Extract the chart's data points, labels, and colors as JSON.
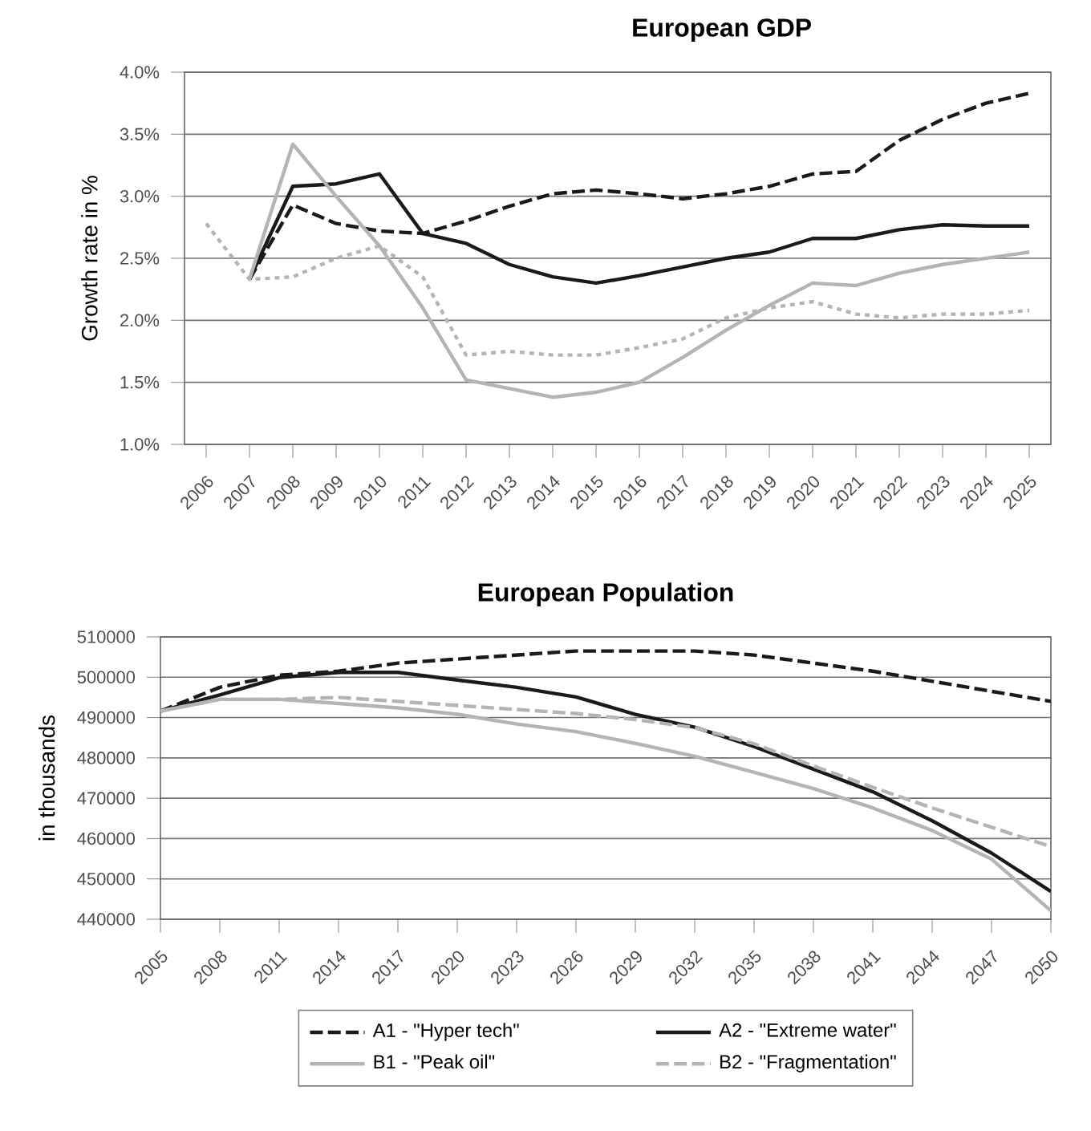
{
  "chart_data": [
    {
      "type": "line",
      "title": "European GDP",
      "ylabel": "Growth rate in %",
      "categories": [
        "2006",
        "2007",
        "2008",
        "2009",
        "2010",
        "2011",
        "2012",
        "2013",
        "2014",
        "2015",
        "2016",
        "2017",
        "2018",
        "2019",
        "2020",
        "2021",
        "2022",
        "2023",
        "2024",
        "2025"
      ],
      "series": [
        {
          "color": "#1a1a1a",
          "line_style": "dashed",
          "values": [
            null,
            2.33,
            2.93,
            2.78,
            2.72,
            2.7,
            2.8,
            2.92,
            3.02,
            3.05,
            3.02,
            2.98,
            3.02,
            3.08,
            3.18,
            3.2,
            3.45,
            3.62,
            3.75,
            3.83
          ]
        },
        {
          "color": "#1a1a1a",
          "line_style": "solid",
          "values": [
            null,
            2.33,
            3.08,
            3.1,
            3.18,
            2.7,
            2.62,
            2.45,
            2.35,
            2.3,
            2.36,
            2.43,
            2.5,
            2.55,
            2.66,
            2.66,
            2.73,
            2.77,
            2.76,
            2.76
          ]
        },
        {
          "color": "#b4b4b4",
          "line_style": "solid",
          "values": [
            null,
            2.33,
            3.42,
            3.0,
            2.6,
            2.1,
            1.52,
            1.45,
            1.38,
            1.42,
            1.5,
            1.7,
            1.92,
            2.12,
            2.3,
            2.28,
            2.38,
            2.45,
            2.5,
            2.55
          ]
        },
        {
          "color": "#b4b4b4",
          "line_style": "dotted",
          "values": [
            2.78,
            2.33,
            2.35,
            2.5,
            2.6,
            2.35,
            1.72,
            1.75,
            1.72,
            1.72,
            1.78,
            1.85,
            2.02,
            2.1,
            2.15,
            2.05,
            2.02,
            2.05,
            2.05,
            2.08
          ]
        }
      ],
      "ylim": [
        1.0,
        4.0
      ],
      "yticks": [
        {
          "value": 1.0,
          "label": "1.0%"
        },
        {
          "value": 1.5,
          "label": "1.5%"
        },
        {
          "value": 2.0,
          "label": "2.0%"
        },
        {
          "value": 2.5,
          "label": "2.5%"
        },
        {
          "value": 3.0,
          "label": "3.0%"
        },
        {
          "value": 3.5,
          "label": "3.5%"
        },
        {
          "value": 4.0,
          "label": "4.0%"
        }
      ],
      "grid": "y",
      "marker": "none"
    },
    {
      "type": "line",
      "title": "European Population",
      "ylabel": "in thousands",
      "x": [
        2005,
        2008,
        2011,
        2014,
        2017,
        2020,
        2023,
        2026,
        2029,
        2032,
        2035,
        2038,
        2041,
        2044,
        2047,
        2050
      ],
      "series": [
        {
          "name": "A1 - \"Hyper tech\"",
          "color": "#1a1a1a",
          "line_style": "dashed",
          "values": [
            491600,
            497500,
            500500,
            501500,
            503500,
            504500,
            505500,
            506500,
            506500,
            506500,
            505500,
            503500,
            501500,
            499000,
            496500,
            494000
          ]
        },
        {
          "name": "A2 - \"Extreme water\"",
          "color": "#1a1a1a",
          "line_style": "solid",
          "values": [
            491600,
            495600,
            499900,
            501200,
            501200,
            499300,
            497500,
            495100,
            490800,
            487600,
            482800,
            477200,
            471600,
            464400,
            456400,
            446900
          ]
        },
        {
          "name": "B1 - \"Peak oil\"",
          "color": "#b4b4b4",
          "line_style": "solid",
          "values": [
            491600,
            494500,
            494500,
            493500,
            492400,
            490800,
            488400,
            486500,
            483600,
            480400,
            476400,
            472400,
            467600,
            462000,
            454900,
            442100
          ]
        },
        {
          "name": "B2 - \"Fragmentation\"",
          "color": "#b4b4b4",
          "line_style": "dashed",
          "values": [
            491600,
            494500,
            494500,
            495000,
            494000,
            493000,
            492000,
            491000,
            489500,
            487500,
            483500,
            478000,
            472700,
            467600,
            462800,
            458000
          ]
        }
      ],
      "xlim": [
        2005,
        2050
      ],
      "xticks": [
        2005,
        2008,
        2011,
        2014,
        2017,
        2020,
        2023,
        2026,
        2029,
        2032,
        2035,
        2038,
        2041,
        2044,
        2047,
        2050
      ],
      "ylim": [
        440000,
        510000
      ],
      "yticks": [
        440000,
        450000,
        460000,
        470000,
        480000,
        490000,
        500000,
        510000
      ],
      "grid": "y",
      "legend": "bottom",
      "marker": "none"
    }
  ]
}
